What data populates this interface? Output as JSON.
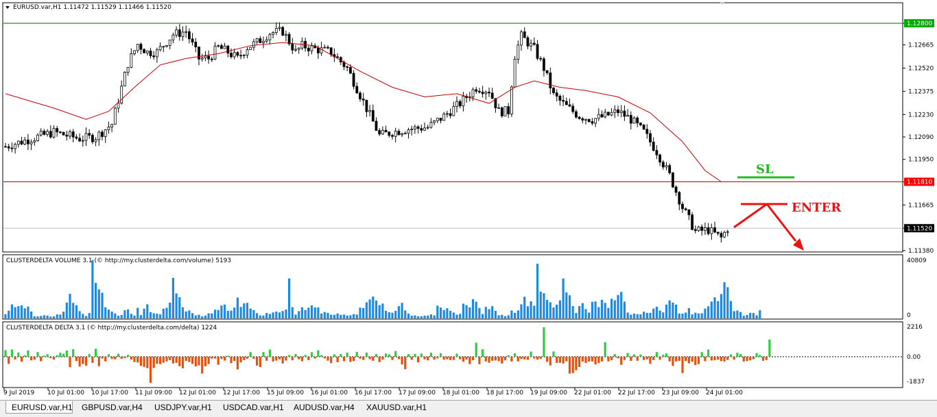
{
  "window": {
    "symbol_header": "EURUSD.var,H1  1.11472 1.11529 1.11466 1.11520",
    "menu_arrow": "triangle-down-icon"
  },
  "price_panel": {
    "y_ticks": [
      "1.12800",
      "1.12665",
      "1.12520",
      "1.12375",
      "1.12230",
      "1.12090",
      "1.11950",
      "1.11810",
      "1.11665",
      "1.11520",
      "1.11380"
    ],
    "highlighted_levels": [
      {
        "value": "1.12800",
        "color": "#006400",
        "label_bg": "#00aa00"
      },
      {
        "value": "1.11810",
        "color": "#cc0000",
        "label_bg": "#ff0000"
      },
      {
        "value": "1.11520",
        "color": "#c0c0c0",
        "label_bg": "#000000"
      }
    ],
    "annotations": {
      "sl": "SL",
      "enter": "ENTER"
    },
    "colors": {
      "sl": "#22bb22",
      "enter": "#ee1111",
      "ma": "#c00000",
      "candle": "#000000"
    }
  },
  "volume_panel": {
    "title": "CLUSTERDELTA VOLUME 3.1 (© http://my.clusterdelta.com/volume) 5193",
    "y_ticks": [
      "40809",
      "0"
    ],
    "bar_color": "#1e88e5"
  },
  "delta_panel": {
    "title": "CLUSTERDELTA DELTA 3.1 (© http://my.clusterdelta.com/delta) 1224",
    "y_ticks": [
      "2216",
      "0.00",
      "-1837"
    ],
    "pos_color": "#2ecc40",
    "neg_color": "#e8500a"
  },
  "x_axis_labels": [
    "9 Jul 2019",
    "10 Jul 01:00",
    "10 Jul 17:00",
    "11 Jul 09:00",
    "12 Jul 01:00",
    "12 Jul 17:00",
    "15 Jul 09:00",
    "16 Jul 01:00",
    "16 Jul 17:00",
    "17 Jul 09:00",
    "18 Jul 01:00",
    "18 Jul 17:00",
    "19 Jul 09:00",
    "22 Jul 01:00",
    "22 Jul 17:00",
    "23 Jul 09:00",
    "24 Jul 01:00"
  ],
  "tabs": [
    {
      "label": "EURUSD.var,H1",
      "active": true
    },
    {
      "label": "GBPUSD.var,H4",
      "active": false
    },
    {
      "label": "USDJPY.var,H1",
      "active": false
    },
    {
      "label": "USDCAD.var,H1",
      "active": false
    },
    {
      "label": "AUDUSD.var,H4",
      "active": false
    },
    {
      "label": "XAUUSD.var,H1",
      "active": false
    }
  ],
  "chart_data": [
    {
      "type": "candlestick",
      "title": "EURUSD.var,H1",
      "y_range": [
        1.1138,
        1.1282
      ],
      "price_path_anchors": [
        [
          0,
          1.1203
        ],
        [
          8,
          1.1208
        ],
        [
          15,
          1.1212
        ],
        [
          23,
          1.1208
        ],
        [
          28,
          1.1209
        ],
        [
          33,
          1.1217
        ],
        [
          38,
          1.1255
        ],
        [
          41,
          1.1267
        ],
        [
          44,
          1.1262
        ],
        [
          47,
          1.1262
        ],
        [
          52,
          1.1273
        ],
        [
          56,
          1.1275
        ],
        [
          60,
          1.1258
        ],
        [
          63,
          1.1258
        ],
        [
          66,
          1.1265
        ],
        [
          69,
          1.1262
        ],
        [
          72,
          1.1258
        ],
        [
          75,
          1.1265
        ],
        [
          78,
          1.1268
        ],
        [
          82,
          1.1274
        ],
        [
          86,
          1.1275
        ],
        [
          90,
          1.1262
        ],
        [
          92,
          1.1266
        ],
        [
          96,
          1.1264
        ],
        [
          101,
          1.1262
        ],
        [
          106,
          1.1252
        ],
        [
          111,
          1.1231
        ],
        [
          116,
          1.121
        ],
        [
          120,
          1.1212
        ],
        [
          125,
          1.1214
        ],
        [
          131,
          1.1215
        ],
        [
          136,
          1.1222
        ],
        [
          141,
          1.123
        ],
        [
          146,
          1.124
        ],
        [
          150,
          1.1238
        ],
        [
          153,
          1.1225
        ],
        [
          156,
          1.1225
        ],
        [
          158,
          1.126
        ],
        [
          160,
          1.1272
        ],
        [
          164,
          1.1264
        ],
        [
          167,
          1.1252
        ],
        [
          170,
          1.1235
        ],
        [
          174,
          1.1228
        ],
        [
          178,
          1.1222
        ],
        [
          182,
          1.122
        ],
        [
          186,
          1.1222
        ],
        [
          190,
          1.1225
        ],
        [
          194,
          1.122
        ],
        [
          198,
          1.1212
        ],
        [
          202,
          1.12
        ],
        [
          206,
          1.1185
        ],
        [
          210,
          1.1165
        ],
        [
          214,
          1.115
        ],
        [
          218,
          1.1151
        ],
        [
          222,
          1.1146
        ],
        [
          224,
          1.1152
        ]
      ],
      "moving_average": [
        [
          0,
          1.1236
        ],
        [
          15,
          1.1227
        ],
        [
          25,
          1.122
        ],
        [
          32,
          1.1225
        ],
        [
          40,
          1.124
        ],
        [
          48,
          1.1254
        ],
        [
          56,
          1.1258
        ],
        [
          66,
          1.1261
        ],
        [
          76,
          1.1266
        ],
        [
          86,
          1.1268
        ],
        [
          96,
          1.1266
        ],
        [
          103,
          1.1258
        ],
        [
          110,
          1.125
        ],
        [
          120,
          1.124
        ],
        [
          130,
          1.1234
        ],
        [
          140,
          1.1236
        ],
        [
          150,
          1.123
        ],
        [
          158,
          1.124
        ],
        [
          164,
          1.1244
        ],
        [
          172,
          1.124
        ],
        [
          180,
          1.1238
        ],
        [
          190,
          1.1234
        ],
        [
          200,
          1.1224
        ],
        [
          210,
          1.1206
        ],
        [
          217,
          1.1188
        ],
        [
          222,
          1.1181
        ]
      ]
    },
    {
      "type": "bar",
      "title": "CLUSTERDELTA VOLUME 3.1",
      "ylim": [
        0,
        40809
      ],
      "values": [
        3000,
        5400,
        9800,
        7900,
        8600,
        9200,
        7100,
        8300,
        4800,
        1500,
        1400,
        1700,
        2200,
        2000,
        1200,
        1400,
        2800,
        2700,
        4700,
        11100,
        17200,
        10900,
        9200,
        5100,
        3200,
        1600,
        3800,
        40809,
        24900,
        20400,
        18000,
        7800,
        6200,
        4800,
        3500,
        1900,
        2400,
        5700,
        6300,
        3200,
        2000,
        7400,
        2300,
        6800,
        9900,
        4400,
        3600,
        3300,
        2800,
        6800,
        7400,
        11100,
        28400,
        17500,
        14900,
        7800,
        4900,
        5600,
        3700,
        2100,
        2600,
        1400,
        2000,
        3600,
        3500,
        6100,
        5900,
        9000,
        9700,
        5300,
        5500,
        7600,
        14600,
        8000,
        10600,
        10900,
        6900,
        5800,
        3700,
        2100,
        2000,
        3800,
        3100,
        4200,
        4800,
        4200,
        5200,
        6200,
        28000,
        7900,
        2700,
        5100,
        7800,
        5900,
        7500,
        9100,
        7700,
        7700,
        3400,
        4500,
        3900,
        2600,
        2500,
        3500,
        2500,
        2700,
        2000,
        2200,
        3000,
        2700,
        7500,
        7300,
        11300,
        13300,
        15300,
        12500,
        9300,
        10400,
        5300,
        4300,
        4000,
        5300,
        8600,
        10900,
        5600,
        3400,
        1900,
        2100,
        1500,
        1500,
        1900,
        2000,
        2800,
        2100,
        8900,
        7600,
        5900,
        7100,
        5300,
        4100,
        2600,
        3200,
        10300,
        9300,
        7700,
        13500,
        11700,
        7300,
        3100,
        8100,
        6500,
        8600,
        5300,
        2200,
        2500,
        1600,
        2200,
        5600,
        3900,
        5600,
        9900,
        15200,
        8500,
        12000,
        8900,
        38300,
        18800,
        17700,
        13000,
        11300,
        7700,
        9600,
        12600,
        28000,
        18200,
        16200,
        8600,
        3800,
        8600,
        10700,
        6500,
        4100,
        11600,
        11900,
        7900,
        13000,
        10900,
        7400,
        13800,
        12700,
        16400,
        18600,
        11800,
        4100,
        2600,
        3400,
        3000,
        2800,
        4700,
        3900,
        3900,
        6900,
        8200,
        5500,
        4200,
        9700,
        12600,
        11100,
        9700,
        3400,
        3300,
        4100,
        7200,
        2800,
        4000,
        3500,
        3600,
        6900,
        8500,
        11800,
        14800,
        12100,
        17100,
        25400,
        21900,
        12200,
        5100,
        5500,
        4500,
        1800,
        2400,
        3900,
        3800,
        2200,
        5700
      ]
    },
    {
      "type": "bar",
      "title": "CLUSTERDELTA DELTA 3.1",
      "ylim": [
        -1837,
        2216
      ],
      "values": [
        500,
        -440,
        550,
        -170,
        320,
        -310,
        110,
        480,
        -220,
        -180,
        350,
        -280,
        80,
        190,
        -90,
        -180,
        110,
        300,
        230,
        470,
        -650,
        570,
        -270,
        -610,
        -450,
        -560,
        200,
        -380,
        600,
        -590,
        -110,
        -290,
        190,
        -140,
        -160,
        230,
        -130,
        -90,
        150,
        -180,
        -330,
        -360,
        -570,
        -630,
        -710,
        -1630,
        -700,
        -440,
        -460,
        -370,
        -290,
        -210,
        -420,
        -380,
        -590,
        -720,
        -260,
        -330,
        -450,
        -600,
        -540,
        -1050,
        -590,
        -450,
        -120,
        -110,
        -500,
        -140,
        -240,
        80,
        -400,
        -260,
        -790,
        -350,
        -210,
        -120,
        350,
        -130,
        -550,
        -640,
        350,
        -250,
        540,
        -300,
        -240,
        -160,
        -420,
        -240,
        130,
        -220,
        200,
        -160,
        -280,
        140,
        -210,
        350,
        -110,
        490,
        120,
        -100,
        -240,
        -400,
        180,
        -340,
        210,
        -280,
        310,
        -320,
        -270,
        360,
        -120,
        -200,
        310,
        -150,
        -250,
        200,
        -330,
        -180,
        240,
        180,
        -200,
        430,
        -150,
        -480,
        -780,
        200,
        -190,
        220,
        -350,
        240,
        -160,
        -220,
        300,
        -180,
        -100,
        270,
        -180,
        -160,
        -210,
        -200,
        230,
        -160,
        -310,
        -180,
        -460,
        -220,
        1060,
        -460,
        560,
        -290,
        -370,
        -250,
        -230,
        -280,
        -420,
        -230,
        120,
        -300,
        260,
        -290,
        -140,
        -170,
        -190,
        390,
        -110,
        -180,
        -130,
        2216,
        -320,
        -540,
        400,
        -380,
        -380,
        -420,
        -280,
        -1050,
        -1020,
        -840,
        -640,
        -300,
        -390,
        -300,
        -290,
        -480,
        -390,
        -290,
        1100,
        -290,
        -210,
        200,
        -100,
        -500,
        -200,
        280,
        -260,
        180,
        -250,
        170,
        -200,
        -160,
        -440,
        -210,
        350,
        -180,
        150,
        250,
        -290,
        -570,
        -290,
        -260,
        -1020,
        -270,
        -410,
        -310,
        -520,
        -460,
        350,
        -280,
        540,
        -230,
        -220,
        -180,
        -270,
        -300,
        -200,
        180,
        -180,
        300,
        200,
        -300,
        -270,
        -220,
        -150,
        280,
        130,
        -250,
        -210,
        1300
      ]
    }
  ]
}
